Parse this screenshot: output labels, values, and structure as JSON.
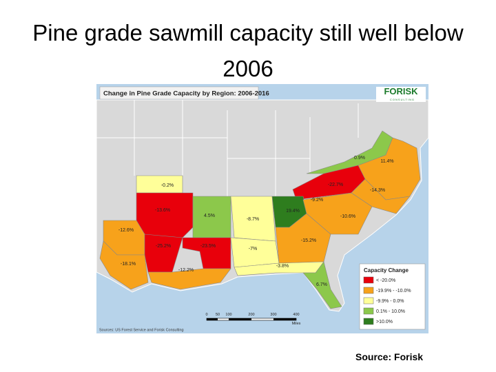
{
  "header": {
    "title": "Pine grade sawmill capacity still well below 2006"
  },
  "map": {
    "title": "Change in Pine Grade Capacity by Region: 2006-2016",
    "logo": "FORISK",
    "logo_sub": "CONSULTING",
    "regions": [
      {
        "label": "0.9%"
      },
      {
        "label": "11.4%"
      },
      {
        "label": "-22.7%"
      },
      {
        "label": "-14.3%"
      },
      {
        "label": "-9.2%"
      },
      {
        "label": "-0.2%"
      },
      {
        "label": "-13.6%"
      },
      {
        "label": "4.5%"
      },
      {
        "label": "-8.7%"
      },
      {
        "label": "19.4%"
      },
      {
        "label": "-10.6%"
      },
      {
        "label": "-12.6%"
      },
      {
        "label": "-25.2%"
      },
      {
        "label": "-23.5%"
      },
      {
        "label": "-7%"
      },
      {
        "label": "-15.2%"
      },
      {
        "label": "-18.1%"
      },
      {
        "label": "-12.2%"
      },
      {
        "label": "-3.8%"
      },
      {
        "label": "6.7%"
      }
    ],
    "legend": {
      "title": "Capacity Change",
      "items": [
        "< -20.0%",
        "-19.9% - -10.0%",
        "-9.9% - 0.0%",
        "0.1% - 10.0%",
        ">10.0%"
      ]
    },
    "scale": {
      "ticks": [
        "0",
        "50",
        "100",
        "200",
        "300",
        "400"
      ],
      "unit": "Miles"
    },
    "source": "Sources: US Forest Service and Forisk Consulting"
  },
  "footer": {
    "source": "Source: Forisk"
  }
}
